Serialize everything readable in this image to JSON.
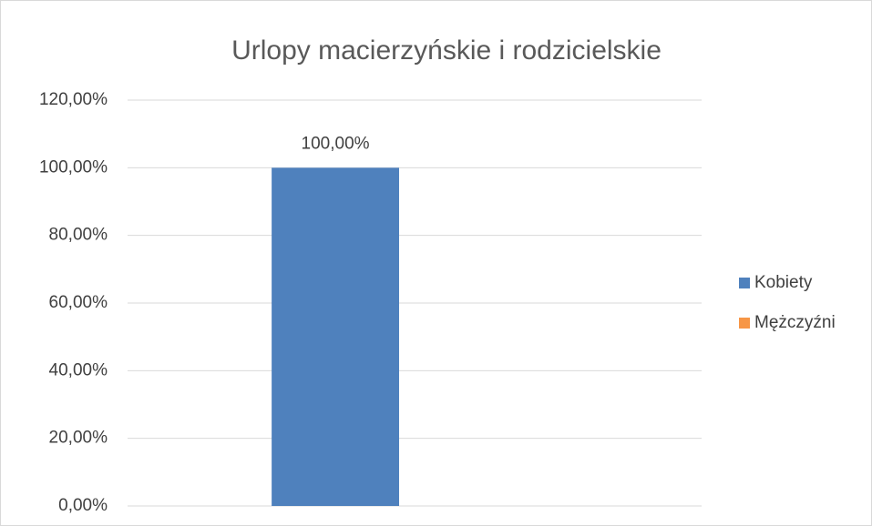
{
  "chart_data": {
    "type": "bar",
    "title": "Urlopy macierzyńskie i rodzicielskie",
    "categories": [
      null
    ],
    "series": [
      {
        "name": "Kobiety",
        "color": "#4f81bd",
        "values": [
          100
        ],
        "value_labels": [
          "100,00%"
        ]
      },
      {
        "name": "Mężczyźni",
        "color": "#f79646",
        "values": [
          0
        ]
      }
    ],
    "ylim": [
      0,
      120
    ],
    "yticks": [
      {
        "value": 0,
        "label": "0,00%"
      },
      {
        "value": 20,
        "label": "20,00%"
      },
      {
        "value": 40,
        "label": "40,00%"
      },
      {
        "value": 60,
        "label": "60,00%"
      },
      {
        "value": 80,
        "label": "80,00%"
      },
      {
        "value": 100,
        "label": "100,00%"
      },
      {
        "value": 120,
        "label": "120,00%"
      }
    ],
    "grid": true,
    "legend": "right"
  }
}
